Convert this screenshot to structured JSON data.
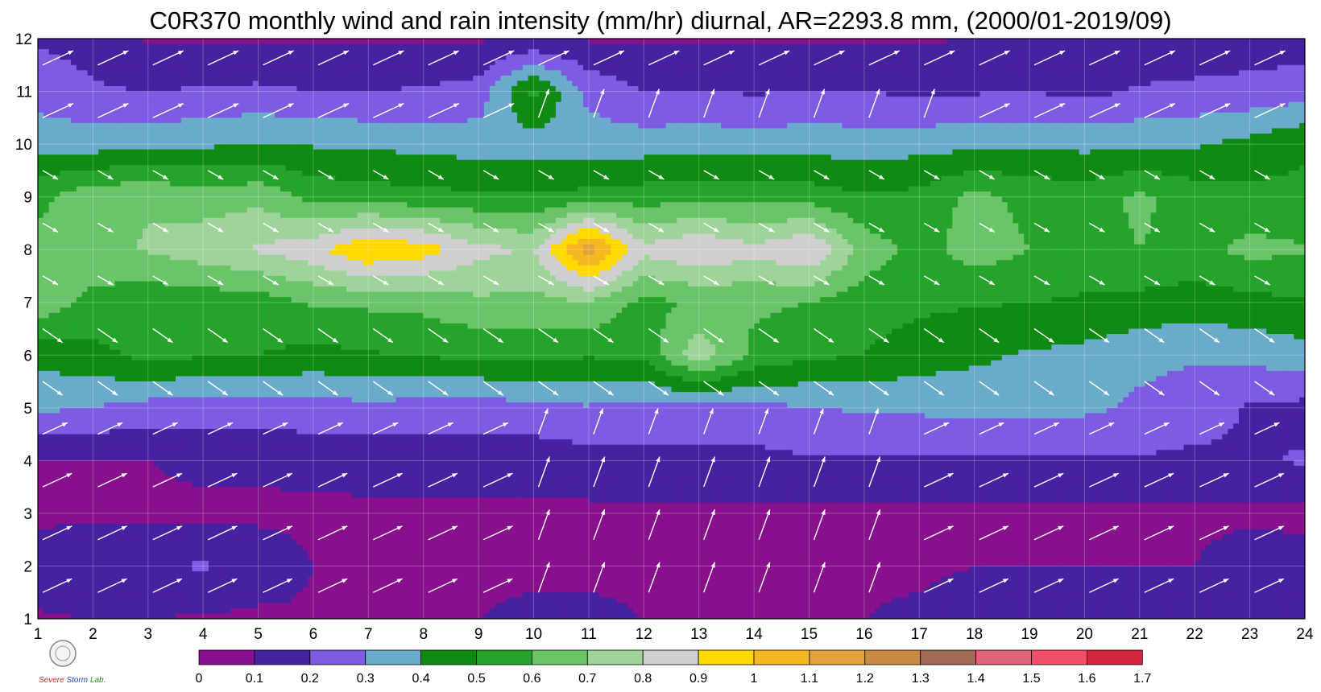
{
  "chart_data": {
    "type": "heatmap",
    "title": "C0R370 monthly wind and rain intensity (mm/hr) diurnal, AR=2293.8 mm, (2000/01-2019/09)",
    "x_ticks": [
      1,
      2,
      3,
      4,
      5,
      6,
      7,
      8,
      9,
      10,
      11,
      12,
      13,
      14,
      15,
      16,
      17,
      18,
      19,
      20,
      21,
      22,
      23,
      24
    ],
    "y_ticks": [
      1,
      2,
      3,
      4,
      5,
      6,
      7,
      8,
      9,
      10,
      11,
      12
    ],
    "xlim": [
      1,
      24
    ],
    "ylim": [
      1,
      12
    ],
    "grid": true,
    "colorbar": {
      "placement": "bottom",
      "labels": [
        "0",
        "0.1",
        "0.2",
        "0.3",
        "0.4",
        "0.5",
        "0.6",
        "0.7",
        "0.8",
        "0.9",
        "1",
        "1.1",
        "1.2",
        "1.3",
        "1.4",
        "1.5",
        "1.6",
        "1.7"
      ],
      "colors": [
        "#88108c",
        "#4621a0",
        "#7d5be2",
        "#6aabcc",
        "#0f8a12",
        "#25a32a",
        "#6cc46a",
        "#9ed49a",
        "#cfcfcf",
        "#ffd900",
        "#f5b820",
        "#e2a33a",
        "#c98a48",
        "#a06c56",
        "#e0647c",
        "#f24f6a",
        "#d4263e"
      ]
    },
    "rain_levels": [
      0.05,
      0.15,
      0.25,
      0.35,
      0.45,
      0.55,
      0.65,
      0.75,
      0.85,
      0.95,
      1.05,
      1.15,
      1.25,
      1.35,
      1.45,
      1.55,
      1.65
    ],
    "month_profiles": [
      [
        0.04,
        0.05,
        0.05,
        0.04,
        0.03,
        0.04,
        0.04,
        0.05,
        0.05,
        0.06,
        0.06,
        0.05,
        0.05,
        0.05,
        0.05,
        0.05,
        0.06,
        0.08,
        0.1,
        0.12,
        0.1,
        0.08,
        0.14,
        0.1
      ],
      [
        0.1,
        0.13,
        0.14,
        0.16,
        0.11,
        0.05,
        0.04,
        0.04,
        0.04,
        0.04,
        0.04,
        0.04,
        0.04,
        0.04,
        0.04,
        0.04,
        0.04,
        0.05,
        0.05,
        0.05,
        0.05,
        0.05,
        0.1,
        0.08
      ],
      [
        0.03,
        0.03,
        0.03,
        0.03,
        0.03,
        0.03,
        0.03,
        0.03,
        0.03,
        0.03,
        0.03,
        0.03,
        0.03,
        0.03,
        0.03,
        0.03,
        0.03,
        0.03,
        0.03,
        0.03,
        0.03,
        0.03,
        0.03,
        0.03
      ],
      [
        0.04,
        0.04,
        0.05,
        0.07,
        0.07,
        0.08,
        0.09,
        0.1,
        0.1,
        0.09,
        0.11,
        0.12,
        0.12,
        0.12,
        0.14,
        0.14,
        0.13,
        0.14,
        0.14,
        0.14,
        0.14,
        0.13,
        0.14,
        0.16
      ],
      [
        0.27,
        0.25,
        0.21,
        0.2,
        0.21,
        0.21,
        0.22,
        0.21,
        0.2,
        0.22,
        0.24,
        0.21,
        0.21,
        0.22,
        0.25,
        0.26,
        0.27,
        0.28,
        0.28,
        0.27,
        0.23,
        0.2,
        0.14,
        0.12
      ],
      [
        0.38,
        0.42,
        0.48,
        0.46,
        0.45,
        0.42,
        0.44,
        0.46,
        0.47,
        0.48,
        0.46,
        0.48,
        0.72,
        0.52,
        0.47,
        0.45,
        0.4,
        0.37,
        0.34,
        0.32,
        0.28,
        0.26,
        0.28,
        0.31
      ],
      [
        0.62,
        0.52,
        0.48,
        0.49,
        0.5,
        0.56,
        0.57,
        0.58,
        0.63,
        0.62,
        0.64,
        0.52,
        0.56,
        0.57,
        0.55,
        0.49,
        0.47,
        0.46,
        0.45,
        0.44,
        0.42,
        0.4,
        0.42,
        0.44
      ],
      [
        0.58,
        0.62,
        0.66,
        0.71,
        0.76,
        0.82,
        0.95,
        0.9,
        0.78,
        0.74,
        1.12,
        0.78,
        0.85,
        0.78,
        0.86,
        0.61,
        0.51,
        0.6,
        0.55,
        0.5,
        0.55,
        0.52,
        0.58,
        0.56
      ],
      [
        0.52,
        0.62,
        0.64,
        0.6,
        0.62,
        0.52,
        0.5,
        0.48,
        0.47,
        0.46,
        0.48,
        0.5,
        0.52,
        0.51,
        0.5,
        0.46,
        0.48,
        0.58,
        0.52,
        0.51,
        0.57,
        0.5,
        0.48,
        0.47
      ],
      [
        0.32,
        0.3,
        0.32,
        0.33,
        0.36,
        0.34,
        0.33,
        0.32,
        0.3,
        0.31,
        0.3,
        0.3,
        0.31,
        0.3,
        0.31,
        0.3,
        0.31,
        0.32,
        0.33,
        0.32,
        0.33,
        0.34,
        0.38,
        0.44
      ],
      [
        0.2,
        0.16,
        0.15,
        0.16,
        0.17,
        0.15,
        0.15,
        0.16,
        0.19,
        0.48,
        0.22,
        0.15,
        0.15,
        0.14,
        0.15,
        0.15,
        0.13,
        0.14,
        0.15,
        0.12,
        0.16,
        0.17,
        0.18,
        0.2
      ],
      [
        0.14,
        0.12,
        0.04,
        0.04,
        0.04,
        0.04,
        0.04,
        0.04,
        0.04,
        0.05,
        0.04,
        0.04,
        0.04,
        0.04,
        0.04,
        0.04,
        0.04,
        0.05,
        0.06,
        0.07,
        0.08,
        0.09,
        0.1,
        0.1
      ]
    ],
    "wind_directions": [
      "wind-vector-month-1",
      "wind-vector-month-12"
    ]
  },
  "logo": {
    "lab_name": "Severe Storm Lab.",
    "colors": {
      "severe": "#d8262e",
      "storm": "#1546b5",
      "lab": "#2a8a2a"
    }
  }
}
